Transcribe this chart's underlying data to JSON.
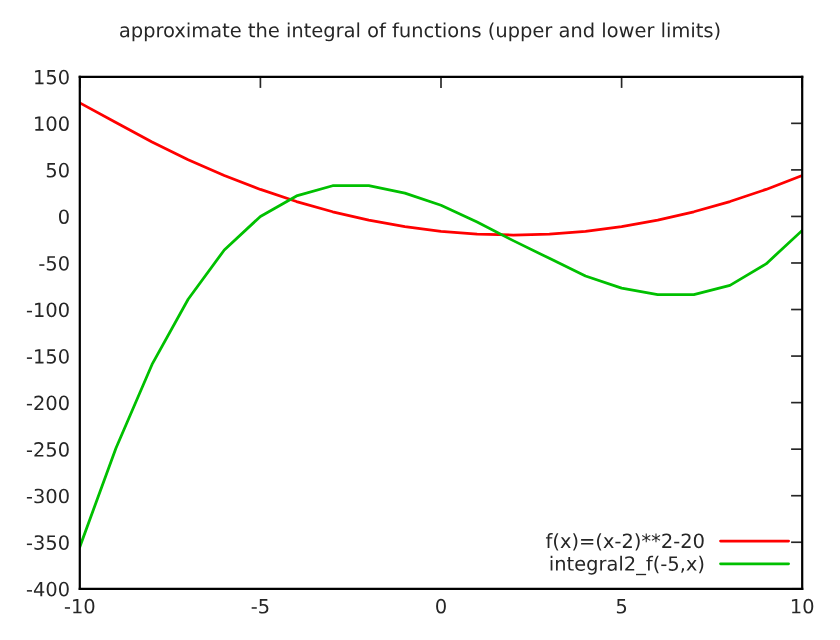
{
  "chart_data": {
    "type": "line",
    "title": "approximate the integral of functions (upper and lower limits)",
    "x": [
      -10,
      -9,
      -8,
      -7,
      -6,
      -5,
      -4,
      -3,
      -2,
      -1,
      0,
      1,
      2,
      3,
      4,
      5,
      6,
      7,
      8,
      9,
      10
    ],
    "series": [
      {
        "name": "f(x)=(x-2)**2-20",
        "color": "#ff0000",
        "values": [
          122,
          101,
          80,
          61,
          44,
          29,
          16,
          5,
          -4,
          -11,
          -16,
          -19,
          -20,
          -19,
          -16,
          -11,
          -4,
          5,
          16,
          29,
          44
        ]
      },
      {
        "name": "integral2_f(-5,x)",
        "color": "#00c000",
        "values": [
          -355,
          -249,
          -159,
          -89,
          -36,
          0,
          22,
          33,
          33,
          25,
          12,
          -6,
          -26,
          -45,
          -64,
          -77,
          -84,
          -84,
          -74,
          -51,
          -15
        ]
      }
    ],
    "xlim": [
      -10,
      10
    ],
    "xticks": [
      -10,
      -5,
      0,
      5,
      10
    ],
    "ylim": [
      -400,
      150
    ],
    "yticks": [
      -400,
      -350,
      -300,
      -250,
      -200,
      -150,
      -100,
      -50,
      0,
      50,
      100,
      150
    ],
    "grid": false,
    "legend": "bottom right",
    "line_style": "solid",
    "marker": "none"
  }
}
